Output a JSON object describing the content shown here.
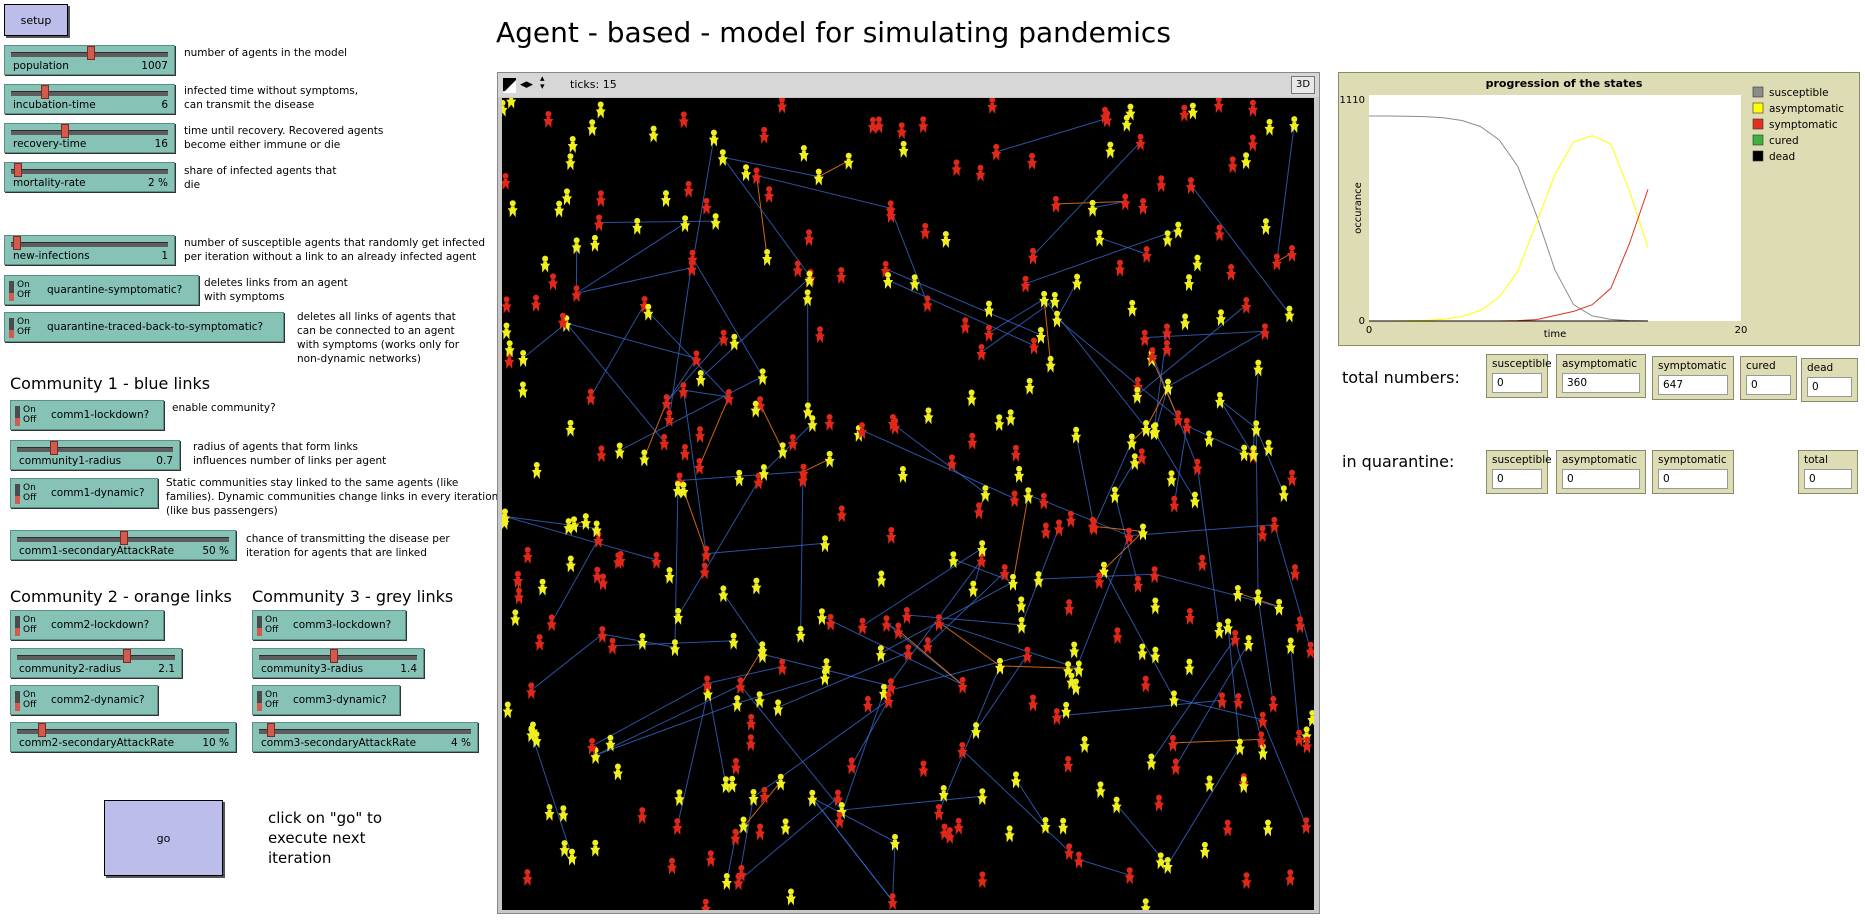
{
  "title": "Agent - based - model for simulating pandemics",
  "setup_label": "setup",
  "go_label": "go",
  "go_note": [
    "click on \"go\" to",
    "execute next",
    "iteration"
  ],
  "controls": {
    "population": {
      "label": "population",
      "value": "1007",
      "fraction": 0.5,
      "note": [
        "number of agents in the model"
      ]
    },
    "incubation": {
      "label": "incubation-time",
      "value": "6",
      "fraction": 0.2,
      "note": [
        "infected time without symptoms,",
        "can transmit the disease"
      ]
    },
    "recovery": {
      "label": "recovery-time",
      "value": "16",
      "fraction": 0.33,
      "note": [
        "time until recovery. Recovered agents",
        "become either immune or die"
      ]
    },
    "mortality": {
      "label": "mortality-rate",
      "value": "2 %",
      "fraction": 0.02,
      "note": [
        "share of infected agents that",
        "die"
      ]
    },
    "new_infections": {
      "label": "new-infections",
      "value": "1",
      "fraction": 0.01,
      "note": [
        "number of susceptible agents that randomly get infected",
        "per iteration without a link to an already infected agent"
      ]
    },
    "quarantine_symptomatic": {
      "label": "quarantine-symptomatic?",
      "note": [
        "deletes links from an agent",
        "with symptoms"
      ]
    },
    "quarantine_traced": {
      "label": "quarantine-traced-back-to-symptomatic?",
      "note": [
        "deletes all links of agents that",
        "can be connected to an agent",
        "with symptoms (works only for",
        "non-dynamic networks)"
      ]
    }
  },
  "comm1": {
    "heading": "Community 1 - blue links",
    "lockdown": {
      "label": "comm1-lockdown?",
      "note": [
        "enable community?"
      ]
    },
    "radius": {
      "label": "community1-radius",
      "value": "0.7",
      "fraction": 0.22,
      "note": [
        "radius of agents that form links",
        "influences number of links per agent"
      ]
    },
    "dynamic": {
      "label": "comm1-dynamic?",
      "note": [
        "Static communities stay linked to the same agents (like",
        "families). Dynamic communities change links in every iteration",
        "(like bus passengers)"
      ]
    },
    "attack": {
      "label": "comm1-secondaryAttackRate",
      "value": "50 %",
      "fraction": 0.5,
      "note": [
        "chance of transmitting the disease per",
        "iteration for agents that are linked"
      ]
    }
  },
  "comm2": {
    "heading": "Community 2 - orange links",
    "lockdown": {
      "label": "comm2-lockdown?"
    },
    "radius": {
      "label": "community2-radius",
      "value": "2.1",
      "fraction": 0.7
    },
    "dynamic": {
      "label": "comm2-dynamic?"
    },
    "attack": {
      "label": "comm2-secondaryAttackRate",
      "value": "10 %",
      "fraction": 0.1
    }
  },
  "comm3": {
    "heading": "Community 3 - grey links",
    "lockdown": {
      "label": "comm3-lockdown?"
    },
    "radius": {
      "label": "community3-radius",
      "value": "1.4",
      "fraction": 0.47
    },
    "dynamic": {
      "label": "comm3-dynamic?"
    },
    "attack": {
      "label": "comm3-secondaryAttackRate",
      "value": "4 %",
      "fraction": 0.04
    }
  },
  "switch_on": "On",
  "switch_off": "Off",
  "view": {
    "ticks_label": "ticks: 15",
    "three_d": "3D"
  },
  "monitors": {
    "total_label": "total numbers:",
    "quarantine_label": "in quarantine:",
    "total": [
      {
        "label": "susceptible",
        "value": "0"
      },
      {
        "label": "asymptomatic",
        "value": "360"
      },
      {
        "label": "symptomatic",
        "value": "647"
      },
      {
        "label": "cured",
        "value": "0"
      },
      {
        "label": "dead",
        "value": "0"
      }
    ],
    "quarantine": [
      {
        "label": "susceptible",
        "value": "0"
      },
      {
        "label": "asymptomatic",
        "value": "0"
      },
      {
        "label": "symptomatic",
        "value": "0"
      },
      {
        "label": "total",
        "value": "0"
      }
    ]
  },
  "chart_data": {
    "type": "line",
    "title": "progression of the states",
    "xlabel": "time",
    "ylabel": "occurance",
    "xlim": [
      0,
      20
    ],
    "ylim": [
      0,
      1110
    ],
    "x_ticks": [
      "0",
      "20"
    ],
    "y_ticks": [
      "0",
      "1110"
    ],
    "x": [
      0,
      1,
      2,
      3,
      4,
      5,
      6,
      7,
      8,
      9,
      10,
      11,
      12,
      13,
      14,
      15
    ],
    "series": [
      {
        "name": "susceptible",
        "color": "#8c8c8c",
        "values": [
          1007,
          1007,
          1006,
          1004,
          998,
          985,
          955,
          890,
          760,
          520,
          250,
          80,
          25,
          8,
          2,
          0
        ]
      },
      {
        "name": "asymptomatic",
        "color": "#ffff00",
        "values": [
          0,
          0,
          1,
          3,
          9,
          22,
          52,
          117,
          245,
          480,
          720,
          880,
          910,
          870,
          640,
          360
        ]
      },
      {
        "name": "symptomatic",
        "color": "#e03020",
        "values": [
          0,
          0,
          0,
          0,
          0,
          0,
          0,
          0,
          2,
          7,
          27,
          47,
          80,
          160,
          380,
          647
        ]
      },
      {
        "name": "cured",
        "color": "#40b040",
        "values": [
          0,
          0,
          0,
          0,
          0,
          0,
          0,
          0,
          0,
          0,
          0,
          0,
          0,
          0,
          0,
          0
        ]
      },
      {
        "name": "dead",
        "color": "#000000",
        "values": [
          0,
          0,
          0,
          0,
          0,
          0,
          0,
          0,
          0,
          0,
          0,
          0,
          0,
          0,
          0,
          0
        ]
      }
    ],
    "legend_position": "right"
  }
}
